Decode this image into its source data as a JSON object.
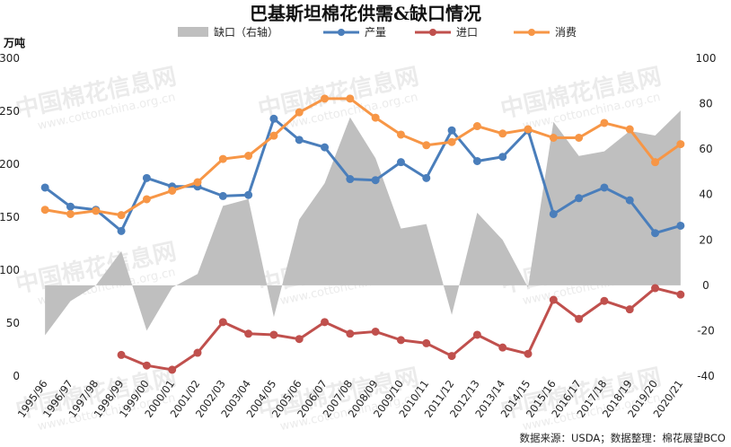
{
  "chart_data": {
    "type": "line",
    "title": "巴基斯坦棉花供需&缺口情况",
    "ylabel": "万吨",
    "ylim": [
      0,
      300
    ],
    "y2lim": [
      -40,
      100
    ],
    "yticks": [
      0,
      50,
      100,
      150,
      200,
      250,
      300
    ],
    "y2ticks": [
      -40,
      -20,
      0,
      20,
      40,
      60,
      80,
      100
    ],
    "legend_position": "top",
    "categories": [
      "1995/96",
      "1996/97",
      "1997/98",
      "1998/99",
      "1999/00",
      "2000/01",
      "2001/02",
      "2002/03",
      "2003/04",
      "2004/05",
      "2005/06",
      "2006/07",
      "2007/08",
      "2008/09",
      "2009/10",
      "2010/11",
      "2011/12",
      "2012/13",
      "2013/14",
      "2014/15",
      "2015/16",
      "2016/17",
      "2017/18",
      "2018/19",
      "2019/20",
      "2020/21"
    ],
    "series": [
      {
        "name": "缺口（右轴）",
        "type": "area",
        "axis": "right",
        "color": "#bfbfbf",
        "values": [
          -22,
          -7,
          0,
          15,
          -20,
          -1,
          5,
          35,
          38,
          -14,
          29,
          45,
          74,
          56,
          25,
          27,
          -13,
          32,
          20,
          -1,
          72,
          57,
          59,
          68,
          66,
          77
        ]
      },
      {
        "name": "产量",
        "type": "line",
        "axis": "left",
        "color": "#4a7ebb",
        "values": [
          178,
          160,
          157,
          137,
          187,
          179,
          179,
          170,
          171,
          243,
          223,
          216,
          186,
          185,
          202,
          187,
          232,
          203,
          207,
          232,
          153,
          168,
          178,
          166,
          135,
          142
        ]
      },
      {
        "name": "进口",
        "type": "line",
        "axis": "left",
        "color": "#c0504d",
        "values": [
          null,
          null,
          null,
          20,
          10,
          6,
          22,
          51,
          40,
          39,
          35,
          51,
          40,
          42,
          34,
          31,
          19,
          39,
          27,
          21,
          72,
          54,
          71,
          63,
          83,
          77
        ]
      },
      {
        "name": "消费",
        "type": "line",
        "axis": "left",
        "color": "#f79646",
        "values": [
          157,
          153,
          156,
          152,
          167,
          175,
          183,
          205,
          208,
          227,
          249,
          262,
          262,
          244,
          228,
          218,
          221,
          236,
          229,
          233,
          225,
          225,
          239,
          233,
          202,
          219
        ]
      }
    ]
  },
  "footer": {
    "source": "数据来源：USDA；数据整理：棉花展望BCO"
  },
  "watermarks": {
    "cn": "中国棉花信息网",
    "url": "www.cottonchina.org.cn"
  }
}
